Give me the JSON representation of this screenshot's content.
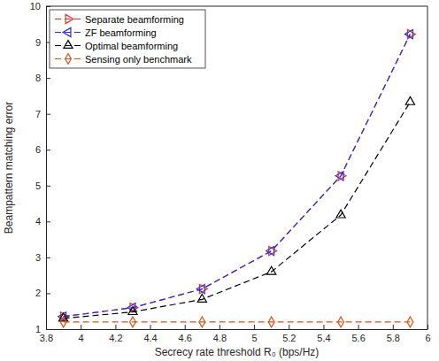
{
  "chart_data": {
    "type": "line",
    "x_label": "Secrecy rate threshold R₀ (bps/Hz)",
    "y_label": "Beampattern matching error",
    "x": [
      3.9,
      4.3,
      4.7,
      5.1,
      5.5,
      5.9
    ],
    "xlim": [
      3.8,
      6
    ],
    "xticks": [
      3.8,
      4,
      4.2,
      4.4,
      4.6,
      4.8,
      5,
      5.2,
      5.4,
      5.6,
      5.8,
      6
    ],
    "ylim": [
      1,
      10
    ],
    "yticks": [
      1,
      2,
      3,
      4,
      5,
      6,
      7,
      8,
      9,
      10
    ],
    "grid": false,
    "legend": "top-left",
    "series": [
      {
        "name": "Separate beamforming",
        "color": "#e8302a",
        "marker": "triangle-right",
        "line_style": "dashed",
        "values": [
          1.35,
          1.6,
          2.12,
          3.18,
          5.27,
          9.22
        ]
      },
      {
        "name": "ZF beamforming",
        "color": "#2b2bd9",
        "marker": "triangle-left",
        "line_style": "dashed",
        "values": [
          1.35,
          1.6,
          2.12,
          3.18,
          5.27,
          9.22
        ]
      },
      {
        "name": "Optimal beamforming",
        "color": "#000000",
        "marker": "triangle-up",
        "line_style": "dashed",
        "values": [
          1.3,
          1.48,
          1.83,
          2.6,
          4.18,
          7.33
        ]
      },
      {
        "name": "Sensing only benchmark",
        "color": "#d95319",
        "marker": "diamond",
        "line_style": "dashed",
        "values": [
          1.2,
          1.2,
          1.2,
          1.2,
          1.2,
          1.2
        ]
      }
    ]
  }
}
